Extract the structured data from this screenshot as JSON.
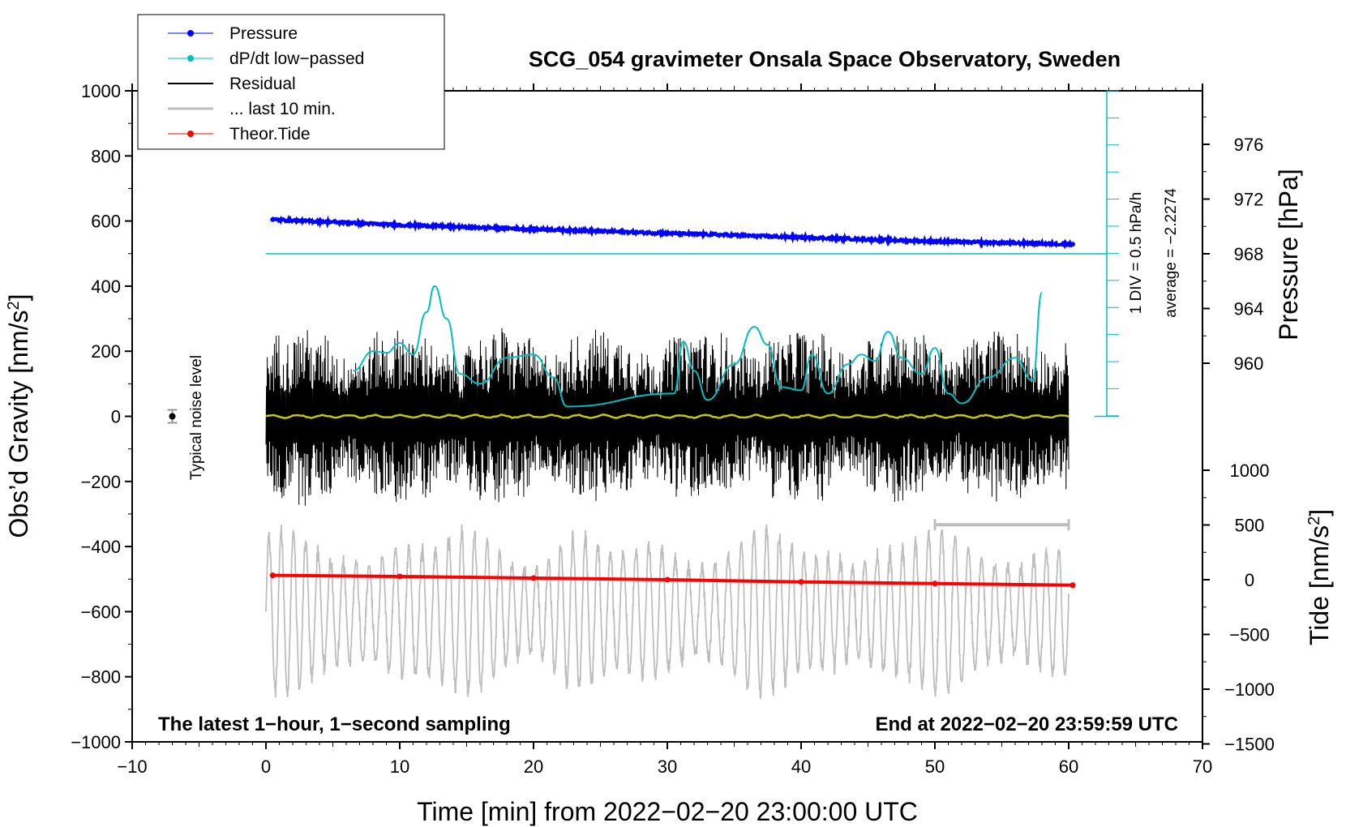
{
  "chart_data": {
    "type": "line",
    "title": "SCG_054 gravimeter Onsala Space Observatory, Sweden",
    "xlabel": "Time [min] from 2022−02−20 23:00:00 UTC",
    "ylabel_left": "Obs’d Gravity [nm/s",
    "ylabel_left_sup": "2",
    "ylabel_left_end": "]",
    "ylabel_right_pressure": "Pressure [hPa]",
    "ylabel_right_tide": "Tide [nm/s",
    "ylabel_right_tide_sup": "2",
    "ylabel_right_tide_end": "]",
    "xlim": [
      -10,
      70
    ],
    "ylim_left": [
      -1000,
      1000
    ],
    "x_ticks": [
      "−10",
      "0",
      "10",
      "20",
      "30",
      "40",
      "50",
      "60",
      "70"
    ],
    "y_ticks_left": [
      "1000",
      "800",
      "600",
      "400",
      "200",
      "0",
      "−200",
      "−400",
      "−600",
      "−800",
      "−1000"
    ],
    "pressure_ticks": [
      "976",
      "972",
      "968",
      "964",
      "960"
    ],
    "tide_ticks": [
      "1000",
      "500",
      "0",
      "−500",
      "−1000",
      "−1500"
    ],
    "annotations": {
      "bottom_left": "The latest 1−hour, 1−second sampling",
      "bottom_right": "End at 2022−02−20 23:59:59 UTC",
      "noise": "Typical noise level",
      "dpdt_scale": "1 DIV = 0.5 hPa/h",
      "dpdt_average": "average = −2.2274"
    },
    "legend": [
      {
        "label": "Pressure",
        "color": "#0000ff",
        "marker": true
      },
      {
        "label": "dP/dt low−passed",
        "color": "#00c0c0",
        "marker": true
      },
      {
        "label": "Residual",
        "color": "#000000",
        "marker": false
      },
      {
        "label": "... last 10 min.",
        "color": "#bebebe",
        "marker": false
      },
      {
        "label": "Theor.Tide",
        "color": "#ff0000",
        "marker": true
      }
    ],
    "series": {
      "pressure_hPa": {
        "x": [
          0.5,
          10,
          20,
          30,
          40,
          50,
          60.3
        ],
        "y": [
          970.5,
          970.1,
          969.8,
          969.5,
          969.2,
          968.9,
          968.7
        ]
      },
      "dpdt_lowpassed": {
        "x": [
          6.5,
          8,
          9,
          10,
          11,
          12,
          12.6,
          13.5,
          14.5,
          16,
          18,
          20,
          21.5,
          22.5,
          30.5,
          31.2,
          32,
          33,
          35,
          36.5,
          37.5,
          38.5,
          40,
          40.8,
          42,
          43.5,
          44.5,
          45.5,
          46.5,
          47.5,
          49,
          50,
          51,
          52,
          54,
          56,
          57.3,
          58
        ],
        "y": [
          140,
          200,
          195,
          225,
          190,
          320,
          400,
          300,
          130,
          100,
          180,
          190,
          120,
          30,
          70,
          230,
          140,
          50,
          160,
          275,
          220,
          90,
          80,
          190,
          70,
          160,
          190,
          170,
          260,
          180,
          130,
          210,
          70,
          40,
          120,
          180,
          110,
          380
        ]
      },
      "residual_mean": {
        "x": [
          0,
          60
        ],
        "y": [
          0,
          0
        ]
      },
      "theor_tide_nm_s2": {
        "x": [
          0.5,
          10,
          20,
          30,
          40,
          50,
          60.3
        ],
        "y": [
          40,
          30,
          15,
          0,
          -20,
          -35,
          -50
        ]
      }
    },
    "colors": {
      "pressure": "#0000ff",
      "dpdt": "#00bfbf",
      "residual": "#000000",
      "last10": "#bebebe",
      "tide": "#ff0000",
      "mean": "#c8c800"
    }
  }
}
